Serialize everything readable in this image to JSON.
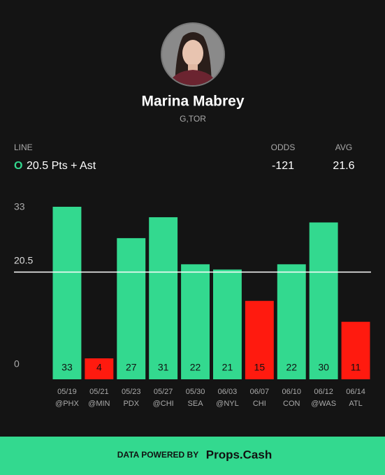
{
  "player": {
    "name": "Marina Mabrey",
    "position_team": "G,TOR"
  },
  "header": {
    "line_label": "LINE",
    "odds_label": "ODDS",
    "avg_label": "AVG",
    "pick": "O",
    "line_text": "20.5 Pts + Ast",
    "odds": "-121",
    "avg": "21.6"
  },
  "chart_data": {
    "type": "bar",
    "categories": [
      "05/19",
      "05/21",
      "05/23",
      "05/27",
      "05/30",
      "06/03",
      "06/07",
      "06/10",
      "06/12",
      "06/14"
    ],
    "opponents": [
      "@PHX",
      "@MIN",
      "PDX",
      "@CHI",
      "SEA",
      "@NYL",
      "CHI",
      "CON",
      "@WAS",
      "ATL"
    ],
    "values": [
      33,
      4,
      27,
      31,
      22,
      21,
      15,
      22,
      30,
      11
    ],
    "threshold": 20.5,
    "over_color": "#33d98f",
    "under_color": "#ff1a0f",
    "ylim": [
      0,
      33
    ],
    "yticks": [
      0,
      33
    ]
  },
  "footer": {
    "label": "DATA POWERED BY",
    "brand": "Props.Cash"
  }
}
